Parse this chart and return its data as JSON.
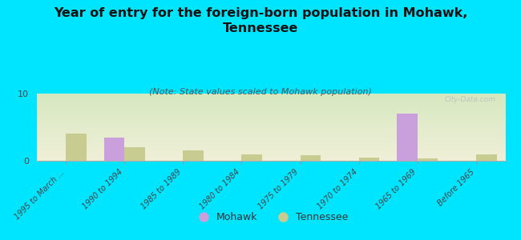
{
  "title": "Year of entry for the foreign-born population in Mohawk,\nTennessee",
  "subtitle": "(Note: State values scaled to Mohawk population)",
  "background_color": "#00e5ff",
  "plot_bg_top": "#d6e8c0",
  "plot_bg_bottom": "#f0f0d8",
  "categories": [
    "1995 to March ...",
    "1990 to 1994",
    "1985 to 1989",
    "1980 to 1984",
    "1975 to 1979",
    "1970 to 1974",
    "1965 to 1969",
    "Before 1965"
  ],
  "mohawk_values": [
    0,
    3.5,
    0,
    0,
    0,
    0,
    7.0,
    0
  ],
  "tennessee_values": [
    4.0,
    2.0,
    1.5,
    1.0,
    0.8,
    0.5,
    0.3,
    1.0
  ],
  "mohawk_color": "#c9a0dc",
  "tennessee_color": "#c8cc90",
  "ylim": [
    0,
    10
  ],
  "yticks": [
    0,
    10
  ],
  "watermark": "City-Data.com",
  "legend_mohawk": "Mohawk",
  "legend_tennessee": "Tennessee",
  "bar_width": 0.35,
  "title_fontsize": 11.5,
  "subtitle_fontsize": 8,
  "tick_label_fontsize": 7,
  "legend_fontsize": 9
}
